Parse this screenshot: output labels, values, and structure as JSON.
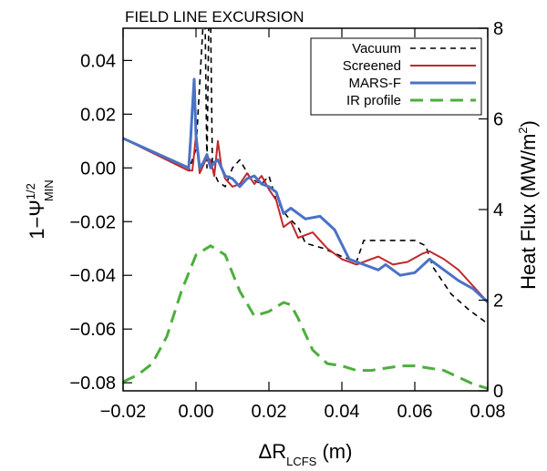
{
  "chart_data": {
    "type": "line",
    "title": "FIELD LINE EXCURSION",
    "xlabel": {
      "base": "ΔR",
      "sub": "LCFS",
      "unit": " (m)"
    },
    "ylabel": {
      "base": "1−Ψ",
      "sup": "1/2",
      "sub": "MIN"
    },
    "y2label": {
      "text": "Heat Flux  (MW/m",
      "sup": "2",
      "end": ")"
    },
    "xlim": [
      -0.02,
      0.08
    ],
    "ylim": [
      -0.083,
      0.052
    ],
    "y2lim": [
      0,
      8
    ],
    "xticks": [
      -0.02,
      0.0,
      0.02,
      0.04,
      0.06,
      0.08
    ],
    "xtick_labels": [
      "−0.02",
      "0.00",
      "0.02",
      "0.04",
      "0.06",
      "0.08"
    ],
    "yticks": [
      0.04,
      0.02,
      0.0,
      -0.02,
      -0.04,
      -0.06,
      -0.08
    ],
    "ytick_labels": [
      "0.04",
      "0.02",
      "0.00",
      "−0.02",
      "−0.04",
      "−0.06",
      "−0.08"
    ],
    "y2ticks": [
      0,
      2,
      4,
      6,
      8
    ],
    "y2tick_labels": [
      "0",
      "2",
      "4",
      "6",
      "8"
    ],
    "legend_position": "top-right",
    "series": [
      {
        "name": "Vacuum",
        "color": "#000000",
        "style": "short-dash",
        "axis": "left",
        "x": [
          -0.02,
          -0.002,
          0.0,
          0.002,
          0.0025,
          0.003,
          0.0035,
          0.004,
          0.0045,
          0.006,
          0.008,
          0.01,
          0.012,
          0.015,
          0.018,
          0.02,
          0.022,
          0.025,
          0.028,
          0.03,
          0.035,
          0.04,
          0.044,
          0.046,
          0.05,
          0.055,
          0.06,
          0.063,
          0.065,
          0.07,
          0.075,
          0.08
        ],
        "y": [
          0.011,
          -0.001,
          0.007,
          0.055,
          0.055,
          0.0,
          0.055,
          0.055,
          0.0,
          -0.005,
          -0.007,
          0.0,
          0.003,
          -0.004,
          -0.006,
          -0.003,
          -0.012,
          -0.018,
          -0.022,
          -0.028,
          -0.03,
          -0.033,
          -0.035,
          -0.027,
          -0.027,
          -0.027,
          -0.027,
          -0.029,
          -0.037,
          -0.047,
          -0.053,
          -0.058
        ]
      },
      {
        "name": "Screened",
        "color": "#c0282d",
        "style": "solid",
        "axis": "left",
        "x": [
          -0.02,
          -0.002,
          -0.001,
          0.0,
          0.001,
          0.002,
          0.003,
          0.004,
          0.005,
          0.006,
          0.007,
          0.008,
          0.01,
          0.012,
          0.014,
          0.016,
          0.018,
          0.02,
          0.022,
          0.024,
          0.026,
          0.028,
          0.032,
          0.036,
          0.04,
          0.044,
          0.048,
          0.05,
          0.054,
          0.058,
          0.062,
          0.064,
          0.068,
          0.072,
          0.076,
          0.08
        ],
        "y": [
          0.011,
          -0.001,
          -0.001,
          0.012,
          -0.002,
          0.001,
          0.004,
          0.003,
          -0.003,
          0.01,
          0.0,
          -0.004,
          -0.007,
          -0.006,
          -0.002,
          -0.006,
          -0.003,
          -0.008,
          -0.012,
          -0.022,
          -0.02,
          -0.026,
          -0.024,
          -0.03,
          -0.034,
          -0.036,
          -0.034,
          -0.033,
          -0.036,
          -0.035,
          -0.032,
          -0.031,
          -0.034,
          -0.038,
          -0.044,
          -0.05
        ]
      },
      {
        "name": "MARS-F",
        "color": "#4a72c4",
        "style": "solid",
        "axis": "left",
        "x": [
          -0.02,
          -0.002,
          -0.0015,
          -0.001,
          -0.0005,
          0.0,
          0.001,
          0.002,
          0.003,
          0.004,
          0.005,
          0.006,
          0.007,
          0.008,
          0.01,
          0.012,
          0.014,
          0.016,
          0.018,
          0.02,
          0.022,
          0.024,
          0.026,
          0.03,
          0.034,
          0.038,
          0.042,
          0.046,
          0.05,
          0.052,
          0.056,
          0.06,
          0.064,
          0.068,
          0.072,
          0.076,
          0.08
        ],
        "y": [
          0.011,
          0.0,
          0.01,
          0.022,
          0.033,
          0.012,
          0.0,
          0.002,
          0.005,
          0.0,
          0.002,
          0.003,
          0.0,
          -0.003,
          -0.004,
          -0.007,
          -0.004,
          -0.003,
          -0.006,
          -0.007,
          -0.009,
          -0.017,
          -0.015,
          -0.019,
          -0.018,
          -0.023,
          -0.034,
          -0.036,
          -0.038,
          -0.036,
          -0.04,
          -0.039,
          -0.034,
          -0.038,
          -0.042,
          -0.045,
          -0.05
        ]
      },
      {
        "name": "IR profile",
        "color": "#4caf3d",
        "style": "long-dash",
        "axis": "right",
        "x": [
          -0.02,
          -0.016,
          -0.012,
          -0.008,
          -0.004,
          0.0,
          0.004,
          0.008,
          0.012,
          0.016,
          0.02,
          0.024,
          0.026,
          0.028,
          0.032,
          0.036,
          0.04,
          0.044,
          0.048,
          0.052,
          0.056,
          0.06,
          0.064,
          0.068,
          0.072,
          0.076,
          0.08
        ],
        "y": [
          0.2,
          0.35,
          0.6,
          1.2,
          2.2,
          3.0,
          3.2,
          3.0,
          2.2,
          1.65,
          1.75,
          1.95,
          1.9,
          1.6,
          0.9,
          0.6,
          0.55,
          0.45,
          0.45,
          0.5,
          0.55,
          0.55,
          0.5,
          0.45,
          0.3,
          0.15,
          0.05
        ]
      }
    ]
  }
}
